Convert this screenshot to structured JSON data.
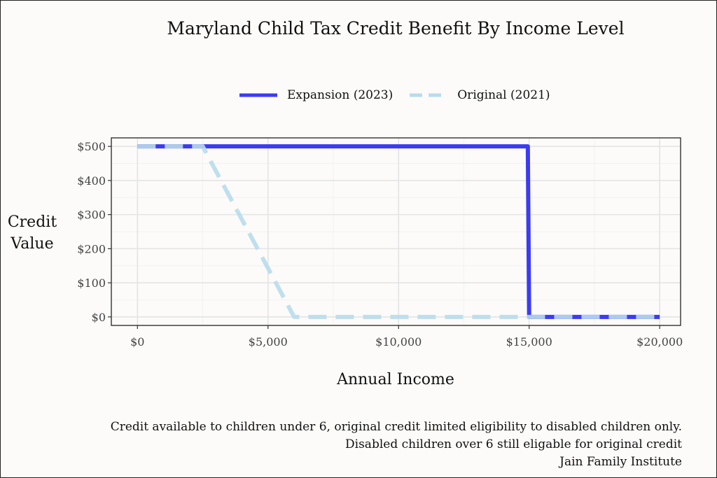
{
  "chart_data": {
    "type": "line",
    "title": "Maryland Child Tax Credit Benefit By Income Level",
    "xlabel": "Annual Income",
    "ylabel_line1": "Credit",
    "ylabel_line2": "Value",
    "xlim": [
      -1000,
      20800
    ],
    "ylim": [
      -25,
      525
    ],
    "x_ticks": [
      0,
      5000,
      10000,
      15000,
      20000
    ],
    "x_tick_labels": [
      "$0",
      "$5,000",
      "$10,000",
      "$15,000",
      "$20,000"
    ],
    "y_ticks": [
      0,
      100,
      200,
      300,
      400,
      500
    ],
    "y_tick_labels": [
      "$0",
      "$100",
      "$200",
      "$300",
      "$400",
      "$500"
    ],
    "grid": true,
    "legend_position": "top",
    "series": [
      {
        "name": "Expansion (2023)",
        "color": "#3b3bf5",
        "dash": "solid",
        "x": [
          0,
          14950,
          15000,
          20000
        ],
        "y": [
          500,
          500,
          0,
          0
        ]
      },
      {
        "name": "Original (2021)",
        "color": "#b8dcec",
        "dash": "dashed",
        "x": [
          0,
          2500,
          6000,
          20000
        ],
        "y": [
          500,
          500,
          0,
          0
        ]
      }
    ],
    "caption_lines": [
      "Credit available to children under 6, original credit limited eligibility to disabled children only.",
      "Disabled children over 6 still eligable for original credit",
      "Jain Family Institute"
    ]
  }
}
